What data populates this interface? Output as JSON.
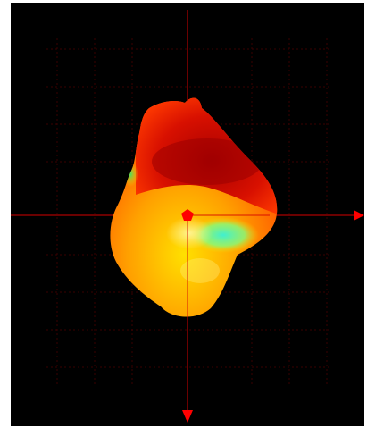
{
  "viewer": {
    "background_color": "#000000",
    "axis_color": "#ff0000",
    "grid_color": "#3a0000",
    "surface_colors": {
      "dark_red": "#b00000",
      "red": "#e01400",
      "orange": "#ff6a00",
      "yellow": "#ffd400",
      "green": "#40e080",
      "cyan": "#40f0d0"
    },
    "icons": {
      "x_axis_arrow": "arrow-right-icon",
      "y_axis_arrow": "arrow-down-icon",
      "center_marker": "pentagon-marker-icon"
    }
  }
}
